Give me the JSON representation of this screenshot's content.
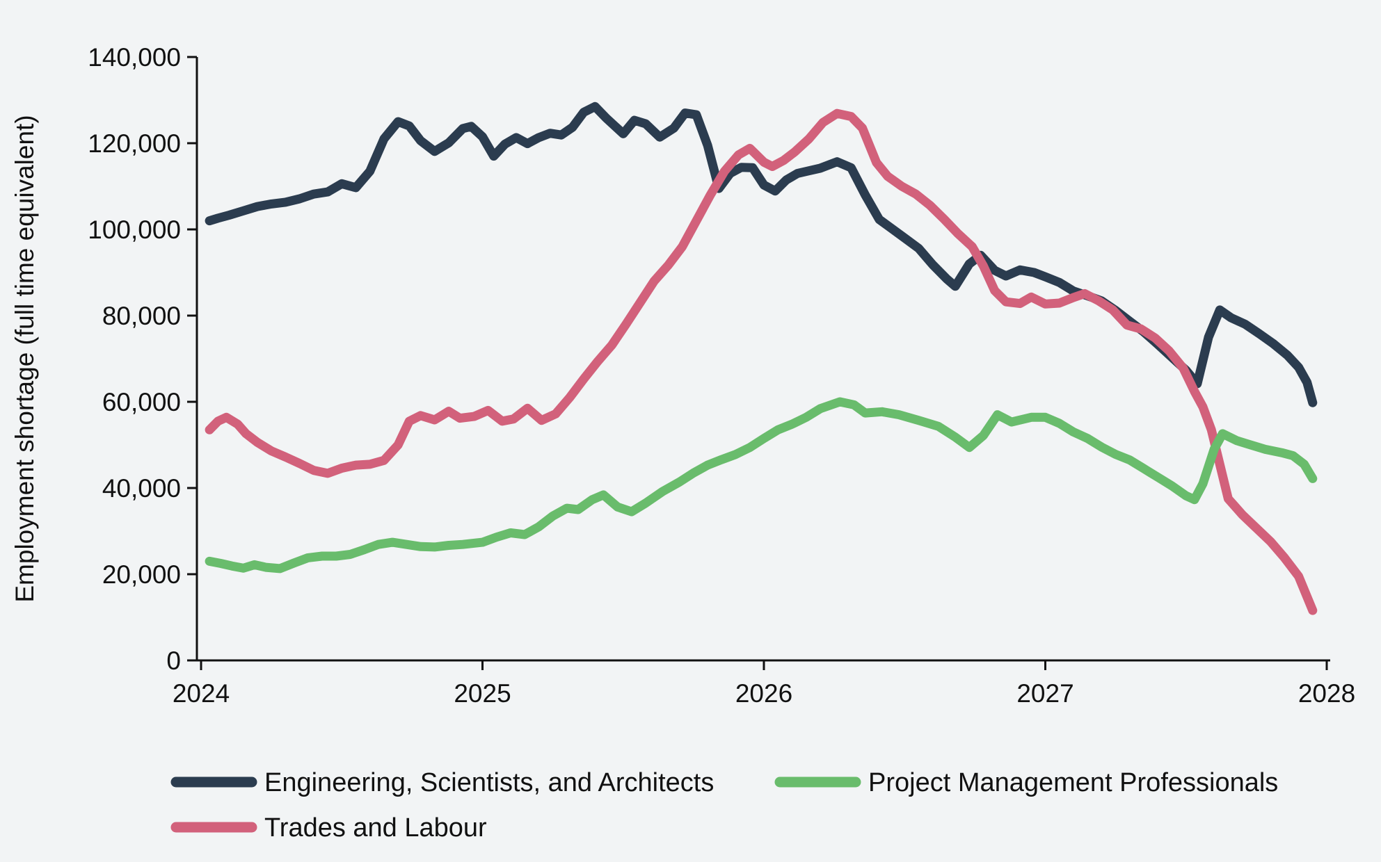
{
  "figure": {
    "background_color": "#f2f4f5",
    "axis_color": "#111111",
    "text_color": "#111111"
  },
  "chart_data": {
    "type": "line",
    "title": "",
    "xlabel": "",
    "ylabel": "Employment shortage (full time equivalent)",
    "xlim": [
      2024,
      2028
    ],
    "ylim": [
      0,
      140000
    ],
    "grid": false,
    "legend_position": "bottom",
    "x_ticks": [
      {
        "value": 2024,
        "label": "2024"
      },
      {
        "value": 2025,
        "label": "2025"
      },
      {
        "value": 2026,
        "label": "2026"
      },
      {
        "value": 2027,
        "label": "2027"
      },
      {
        "value": 2028,
        "label": "2028"
      }
    ],
    "y_ticks": [
      {
        "value": 0,
        "label": "0"
      },
      {
        "value": 20000,
        "label": "20,000"
      },
      {
        "value": 40000,
        "label": "40,000"
      },
      {
        "value": 60000,
        "label": "60,000"
      },
      {
        "value": 80000,
        "label": "80,000"
      },
      {
        "value": 100000,
        "label": "100,000"
      },
      {
        "value": 120000,
        "label": "120,000"
      },
      {
        "value": 140000,
        "label": "140,000"
      }
    ],
    "series": [
      {
        "name": "Engineering, Scientists, and Architects",
        "color": "#2b3c4f",
        "points": [
          [
            2024.03,
            102000
          ],
          [
            2024.06,
            102600
          ],
          [
            2024.1,
            103300
          ],
          [
            2024.15,
            104300
          ],
          [
            2024.2,
            105300
          ],
          [
            2024.25,
            105900
          ],
          [
            2024.3,
            106300
          ],
          [
            2024.35,
            107100
          ],
          [
            2024.4,
            108200
          ],
          [
            2024.45,
            108700
          ],
          [
            2024.5,
            110600
          ],
          [
            2024.55,
            109700
          ],
          [
            2024.6,
            113500
          ],
          [
            2024.65,
            121000
          ],
          [
            2024.7,
            125000
          ],
          [
            2024.74,
            124000
          ],
          [
            2024.78,
            120600
          ],
          [
            2024.83,
            118100
          ],
          [
            2024.88,
            120100
          ],
          [
            2024.93,
            123400
          ],
          [
            2024.96,
            123900
          ],
          [
            2025.0,
            121500
          ],
          [
            2025.04,
            117000
          ],
          [
            2025.08,
            119800
          ],
          [
            2025.12,
            121300
          ],
          [
            2025.16,
            119900
          ],
          [
            2025.2,
            121300
          ],
          [
            2025.24,
            122300
          ],
          [
            2025.28,
            121900
          ],
          [
            2025.32,
            123700
          ],
          [
            2025.36,
            127200
          ],
          [
            2025.4,
            128500
          ],
          [
            2025.44,
            125800
          ],
          [
            2025.5,
            122200
          ],
          [
            2025.54,
            125300
          ],
          [
            2025.58,
            124500
          ],
          [
            2025.63,
            121400
          ],
          [
            2025.68,
            123500
          ],
          [
            2025.72,
            127000
          ],
          [
            2025.76,
            126600
          ],
          [
            2025.8,
            119500
          ],
          [
            2025.84,
            109500
          ],
          [
            2025.88,
            113000
          ],
          [
            2025.92,
            114400
          ],
          [
            2025.96,
            114300
          ],
          [
            2026.0,
            110300
          ],
          [
            2026.04,
            108900
          ],
          [
            2026.08,
            111500
          ],
          [
            2026.12,
            113000
          ],
          [
            2026.16,
            113600
          ],
          [
            2026.2,
            114200
          ],
          [
            2026.26,
            115700
          ],
          [
            2026.31,
            114300
          ],
          [
            2026.36,
            108000
          ],
          [
            2026.41,
            102300
          ],
          [
            2026.45,
            100400
          ],
          [
            2026.5,
            98000
          ],
          [
            2026.55,
            95600
          ],
          [
            2026.6,
            91800
          ],
          [
            2026.65,
            88500
          ],
          [
            2026.68,
            86800
          ],
          [
            2026.73,
            92000
          ],
          [
            2026.77,
            94000
          ],
          [
            2026.82,
            90500
          ],
          [
            2026.86,
            89200
          ],
          [
            2026.91,
            90600
          ],
          [
            2026.96,
            90000
          ],
          [
            2027.0,
            89000
          ],
          [
            2027.05,
            87700
          ],
          [
            2027.1,
            85700
          ],
          [
            2027.15,
            84600
          ],
          [
            2027.2,
            83400
          ],
          [
            2027.25,
            81200
          ],
          [
            2027.3,
            78700
          ],
          [
            2027.35,
            76200
          ],
          [
            2027.4,
            73300
          ],
          [
            2027.45,
            70300
          ],
          [
            2027.5,
            67300
          ],
          [
            2027.54,
            64200
          ],
          [
            2027.58,
            75000
          ],
          [
            2027.62,
            81300
          ],
          [
            2027.66,
            79500
          ],
          [
            2027.71,
            78000
          ],
          [
            2027.76,
            75800
          ],
          [
            2027.81,
            73500
          ],
          [
            2027.86,
            70800
          ],
          [
            2027.9,
            68000
          ],
          [
            2027.93,
            64500
          ],
          [
            2027.95,
            59800
          ]
        ]
      },
      {
        "name": "Trades and Labour",
        "color": "#d2617b",
        "points": [
          [
            2024.03,
            53500
          ],
          [
            2024.06,
            55500
          ],
          [
            2024.09,
            56400
          ],
          [
            2024.13,
            54800
          ],
          [
            2024.16,
            52600
          ],
          [
            2024.2,
            50600
          ],
          [
            2024.25,
            48600
          ],
          [
            2024.3,
            47200
          ],
          [
            2024.35,
            45700
          ],
          [
            2024.4,
            44100
          ],
          [
            2024.45,
            43400
          ],
          [
            2024.5,
            44600
          ],
          [
            2024.55,
            45300
          ],
          [
            2024.6,
            45500
          ],
          [
            2024.65,
            46400
          ],
          [
            2024.7,
            50000
          ],
          [
            2024.74,
            55500
          ],
          [
            2024.78,
            56800
          ],
          [
            2024.83,
            55800
          ],
          [
            2024.88,
            57800
          ],
          [
            2024.92,
            56200
          ],
          [
            2024.97,
            56600
          ],
          [
            2025.02,
            58000
          ],
          [
            2025.07,
            55500
          ],
          [
            2025.11,
            56000
          ],
          [
            2025.16,
            58500
          ],
          [
            2025.21,
            55700
          ],
          [
            2025.26,
            57200
          ],
          [
            2025.31,
            61000
          ],
          [
            2025.36,
            65300
          ],
          [
            2025.41,
            69400
          ],
          [
            2025.46,
            73200
          ],
          [
            2025.51,
            78000
          ],
          [
            2025.56,
            83000
          ],
          [
            2025.61,
            88000
          ],
          [
            2025.66,
            91700
          ],
          [
            2025.71,
            96000
          ],
          [
            2025.76,
            102000
          ],
          [
            2025.81,
            108000
          ],
          [
            2025.86,
            113500
          ],
          [
            2025.91,
            117300
          ],
          [
            2025.95,
            118800
          ],
          [
            2026.0,
            115600
          ],
          [
            2026.03,
            114600
          ],
          [
            2026.07,
            116000
          ],
          [
            2026.11,
            118000
          ],
          [
            2026.16,
            121000
          ],
          [
            2026.21,
            124800
          ],
          [
            2026.26,
            126900
          ],
          [
            2026.31,
            126200
          ],
          [
            2026.35,
            123500
          ],
          [
            2026.4,
            115500
          ],
          [
            2026.44,
            112300
          ],
          [
            2026.49,
            110000
          ],
          [
            2026.54,
            108200
          ],
          [
            2026.59,
            105600
          ],
          [
            2026.64,
            102400
          ],
          [
            2026.69,
            99000
          ],
          [
            2026.74,
            96000
          ],
          [
            2026.78,
            91500
          ],
          [
            2026.82,
            85800
          ],
          [
            2026.86,
            83200
          ],
          [
            2026.91,
            82800
          ],
          [
            2026.95,
            84300
          ],
          [
            2027.0,
            82700
          ],
          [
            2027.05,
            82900
          ],
          [
            2027.1,
            84200
          ],
          [
            2027.14,
            85100
          ],
          [
            2027.19,
            83400
          ],
          [
            2027.24,
            81300
          ],
          [
            2027.29,
            77800
          ],
          [
            2027.34,
            76900
          ],
          [
            2027.39,
            74800
          ],
          [
            2027.44,
            71800
          ],
          [
            2027.49,
            67800
          ],
          [
            2027.53,
            62400
          ],
          [
            2027.56,
            58800
          ],
          [
            2027.59,
            53500
          ],
          [
            2027.62,
            45500
          ],
          [
            2027.65,
            37500
          ],
          [
            2027.7,
            33800
          ],
          [
            2027.75,
            30700
          ],
          [
            2027.8,
            27600
          ],
          [
            2027.85,
            23800
          ],
          [
            2027.9,
            19500
          ],
          [
            2027.95,
            11600
          ]
        ]
      },
      {
        "name": "Project Management Professionals",
        "color": "#69bc6c",
        "points": [
          [
            2024.03,
            23000
          ],
          [
            2024.07,
            22500
          ],
          [
            2024.11,
            21900
          ],
          [
            2024.15,
            21400
          ],
          [
            2024.19,
            22200
          ],
          [
            2024.23,
            21600
          ],
          [
            2024.28,
            21300
          ],
          [
            2024.33,
            22600
          ],
          [
            2024.38,
            23800
          ],
          [
            2024.43,
            24200
          ],
          [
            2024.48,
            24200
          ],
          [
            2024.53,
            24600
          ],
          [
            2024.58,
            25700
          ],
          [
            2024.63,
            26900
          ],
          [
            2024.68,
            27400
          ],
          [
            2024.73,
            26900
          ],
          [
            2024.78,
            26400
          ],
          [
            2024.83,
            26300
          ],
          [
            2024.88,
            26700
          ],
          [
            2024.93,
            26900
          ],
          [
            2025.0,
            27400
          ],
          [
            2025.05,
            28600
          ],
          [
            2025.1,
            29600
          ],
          [
            2025.15,
            29200
          ],
          [
            2025.2,
            31000
          ],
          [
            2025.25,
            33500
          ],
          [
            2025.3,
            35300
          ],
          [
            2025.34,
            35000
          ],
          [
            2025.39,
            37300
          ],
          [
            2025.43,
            38400
          ],
          [
            2025.48,
            35600
          ],
          [
            2025.53,
            34500
          ],
          [
            2025.58,
            36500
          ],
          [
            2025.64,
            39200
          ],
          [
            2025.7,
            41400
          ],
          [
            2025.75,
            43500
          ],
          [
            2025.8,
            45300
          ],
          [
            2025.85,
            46600
          ],
          [
            2025.9,
            47800
          ],
          [
            2025.95,
            49400
          ],
          [
            2026.0,
            51500
          ],
          [
            2026.05,
            53500
          ],
          [
            2026.1,
            54800
          ],
          [
            2026.15,
            56400
          ],
          [
            2026.2,
            58400
          ],
          [
            2026.27,
            60000
          ],
          [
            2026.32,
            59300
          ],
          [
            2026.36,
            57400
          ],
          [
            2026.42,
            57700
          ],
          [
            2026.48,
            57000
          ],
          [
            2026.55,
            55700
          ],
          [
            2026.62,
            54300
          ],
          [
            2026.68,
            51800
          ],
          [
            2026.73,
            49400
          ],
          [
            2026.78,
            52200
          ],
          [
            2026.83,
            57000
          ],
          [
            2026.88,
            55300
          ],
          [
            2026.95,
            56400
          ],
          [
            2027.0,
            56400
          ],
          [
            2027.05,
            55000
          ],
          [
            2027.1,
            53000
          ],
          [
            2027.15,
            51500
          ],
          [
            2027.2,
            49500
          ],
          [
            2027.25,
            47800
          ],
          [
            2027.3,
            46500
          ],
          [
            2027.35,
            44500
          ],
          [
            2027.4,
            42500
          ],
          [
            2027.45,
            40500
          ],
          [
            2027.5,
            38200
          ],
          [
            2027.53,
            37300
          ],
          [
            2027.56,
            41000
          ],
          [
            2027.6,
            49000
          ],
          [
            2027.63,
            52600
          ],
          [
            2027.68,
            51000
          ],
          [
            2027.72,
            50200
          ],
          [
            2027.78,
            49000
          ],
          [
            2027.84,
            48200
          ],
          [
            2027.88,
            47500
          ],
          [
            2027.92,
            45500
          ],
          [
            2027.95,
            42200
          ]
        ]
      }
    ],
    "legend": [
      {
        "label": "Engineering, Scientists, and Architects",
        "series_index": 0
      },
      {
        "label": "Project Management Professionals",
        "series_index": 2
      },
      {
        "label": "Trades and Labour",
        "series_index": 1
      }
    ]
  }
}
